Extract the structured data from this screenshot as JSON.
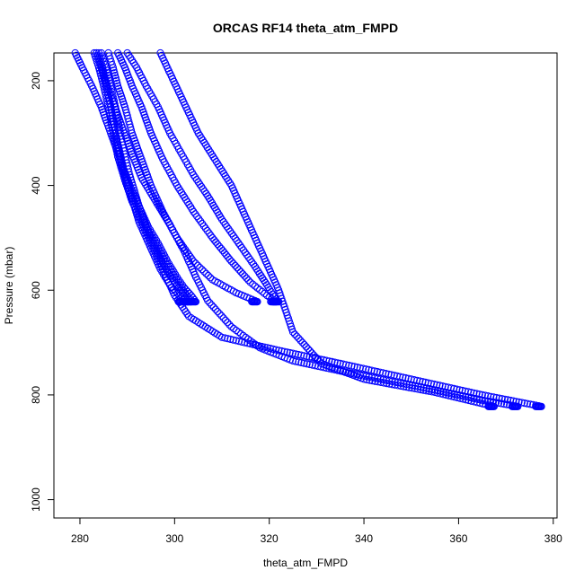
{
  "chart_data": {
    "type": "scatter",
    "title": "ORCAS RF14 theta_atm_FMPD",
    "xlabel": "theta_atm_FMPD",
    "ylabel": "Pressure (mbar)",
    "xlim": [
      274.5,
      380.8
    ],
    "ylim": [
      1035,
      147
    ],
    "y_inverted": true,
    "xticks": [
      280,
      300,
      320,
      340,
      360,
      380
    ],
    "yticks": [
      200,
      400,
      600,
      800,
      1000
    ],
    "marker": "open-circle",
    "marker_color": "#0000ff",
    "grid": false,
    "legend": "none",
    "series": [
      {
        "values": [
          [
            279,
            147
          ],
          [
            280.5,
            175
          ],
          [
            282.5,
            210
          ],
          [
            284.5,
            250
          ],
          [
            286.5,
            300
          ],
          [
            288.5,
            350
          ],
          [
            290.5,
            400
          ],
          [
            292.5,
            440
          ],
          [
            294.5,
            480
          ],
          [
            296.5,
            510
          ],
          [
            298.5,
            545
          ],
          [
            300.5,
            575
          ],
          [
            302,
            595
          ],
          [
            303.5,
            610
          ],
          [
            304.5,
            622
          ]
        ]
      },
      {
        "values": [
          [
            283.5,
            147
          ],
          [
            284.5,
            175
          ],
          [
            285.5,
            210
          ],
          [
            286.5,
            250
          ],
          [
            287.5,
            300
          ],
          [
            288.5,
            350
          ],
          [
            290,
            400
          ],
          [
            292,
            440
          ],
          [
            294,
            480
          ],
          [
            296,
            510
          ],
          [
            298,
            545
          ],
          [
            300,
            575
          ],
          [
            301.5,
            595
          ],
          [
            302.5,
            610
          ],
          [
            303.5,
            622
          ]
        ]
      },
      {
        "values": [
          [
            284.5,
            147
          ],
          [
            285.5,
            175
          ],
          [
            286.5,
            210
          ],
          [
            287.5,
            250
          ],
          [
            288.5,
            300
          ],
          [
            289.5,
            340
          ],
          [
            290.5,
            380
          ],
          [
            291.5,
            410
          ],
          [
            292.5,
            440
          ],
          [
            294.5,
            490
          ],
          [
            296.5,
            530
          ],
          [
            298.5,
            565
          ],
          [
            300.5,
            590
          ],
          [
            302,
            610
          ],
          [
            303,
            622
          ]
        ]
      },
      {
        "values": [
          [
            286,
            147
          ],
          [
            287,
            175
          ],
          [
            288,
            210
          ],
          [
            289.5,
            250
          ],
          [
            291,
            300
          ],
          [
            293,
            350
          ],
          [
            295,
            400
          ],
          [
            297.5,
            450
          ],
          [
            300.5,
            500
          ],
          [
            304,
            545
          ],
          [
            308,
            580
          ],
          [
            313,
            605
          ],
          [
            317.5,
            622
          ]
        ]
      },
      {
        "values": [
          [
            284,
            147
          ],
          [
            284.8,
            175
          ],
          [
            285.5,
            210
          ],
          [
            286.5,
            250
          ],
          [
            287.5,
            300
          ],
          [
            288.5,
            340
          ],
          [
            289.5,
            380
          ],
          [
            290.5,
            410
          ],
          [
            291.5,
            440
          ],
          [
            292.5,
            470
          ],
          [
            294,
            500
          ],
          [
            295.5,
            530
          ],
          [
            297,
            560
          ],
          [
            299,
            590
          ],
          [
            301,
            610
          ],
          [
            302,
            622
          ]
        ]
      },
      {
        "values": [
          [
            288,
            147
          ],
          [
            289.5,
            175
          ],
          [
            291,
            210
          ],
          [
            293,
            250
          ],
          [
            295,
            300
          ],
          [
            297.5,
            350
          ],
          [
            300.5,
            400
          ],
          [
            304,
            450
          ],
          [
            308,
            500
          ],
          [
            312,
            545
          ],
          [
            316,
            585
          ],
          [
            319.5,
            610
          ],
          [
            321.5,
            622
          ]
        ]
      },
      {
        "values": [
          [
            290,
            147
          ],
          [
            292,
            175
          ],
          [
            294,
            210
          ],
          [
            296.5,
            250
          ],
          [
            299,
            300
          ],
          [
            301.5,
            340
          ],
          [
            304,
            380
          ],
          [
            307,
            420
          ],
          [
            310,
            465
          ],
          [
            313.5,
            510
          ],
          [
            317,
            555
          ],
          [
            319.5,
            590
          ],
          [
            321,
            612
          ],
          [
            322,
            622
          ]
        ]
      },
      {
        "values": [
          [
            283,
            147
          ],
          [
            284,
            175
          ],
          [
            285,
            210
          ],
          [
            286,
            250
          ],
          [
            287,
            300
          ],
          [
            288,
            345
          ],
          [
            289.5,
            390
          ],
          [
            291,
            430
          ],
          [
            293,
            470
          ],
          [
            295,
            510
          ],
          [
            297.5,
            560
          ],
          [
            300,
            610
          ],
          [
            303,
            650
          ],
          [
            310,
            690
          ],
          [
            322,
            715
          ],
          [
            335,
            740
          ],
          [
            350,
            770
          ],
          [
            365,
            800
          ],
          [
            377.5,
            822
          ]
        ]
      },
      {
        "values": [
          [
            283.5,
            147
          ],
          [
            285,
            190
          ],
          [
            287,
            240
          ],
          [
            289,
            290
          ],
          [
            291,
            340
          ],
          [
            293,
            385
          ],
          [
            296,
            430
          ],
          [
            299,
            475
          ],
          [
            302,
            525
          ],
          [
            304.5,
            575
          ],
          [
            307,
            620
          ],
          [
            312,
            670
          ],
          [
            318,
            710
          ],
          [
            325,
            735
          ],
          [
            338,
            760
          ],
          [
            352,
            785
          ],
          [
            365,
            810
          ],
          [
            372.5,
            822
          ]
        ]
      },
      {
        "values": [
          [
            297,
            147
          ],
          [
            305,
            300
          ],
          [
            312,
            400
          ],
          [
            318,
            520
          ],
          [
            322,
            600
          ],
          [
            325,
            680
          ],
          [
            331,
            740
          ],
          [
            340,
            770
          ],
          [
            355,
            795
          ],
          [
            367.5,
            822
          ]
        ]
      }
    ]
  }
}
